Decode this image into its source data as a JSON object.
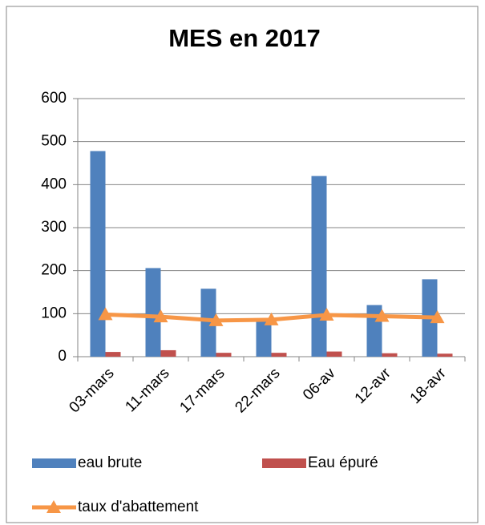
{
  "chart_data": {
    "type": "bar",
    "title": "MES en 2017",
    "categories": [
      "03-mars",
      "11-mars",
      "17-mars",
      "22-mars",
      "06-av",
      "12-avr",
      "18-avr"
    ],
    "series": [
      {
        "name": "eau brute",
        "color": "#4f81bd",
        "values": [
          478,
          206,
          158,
          85,
          420,
          120,
          180
        ]
      },
      {
        "name": "Eau épuré",
        "color": "#c0504d",
        "values": [
          11,
          15,
          9,
          9,
          12,
          8,
          7
        ]
      },
      {
        "name": "taux d'abattement",
        "color": "#f79646",
        "type": "line",
        "values": [
          98,
          93,
          84,
          86,
          97,
          94,
          91
        ]
      }
    ],
    "ylim": [
      0,
      600
    ],
    "yticks": [
      0,
      100,
      200,
      300,
      400,
      500,
      600
    ],
    "grid": true,
    "legend": "bottom"
  }
}
